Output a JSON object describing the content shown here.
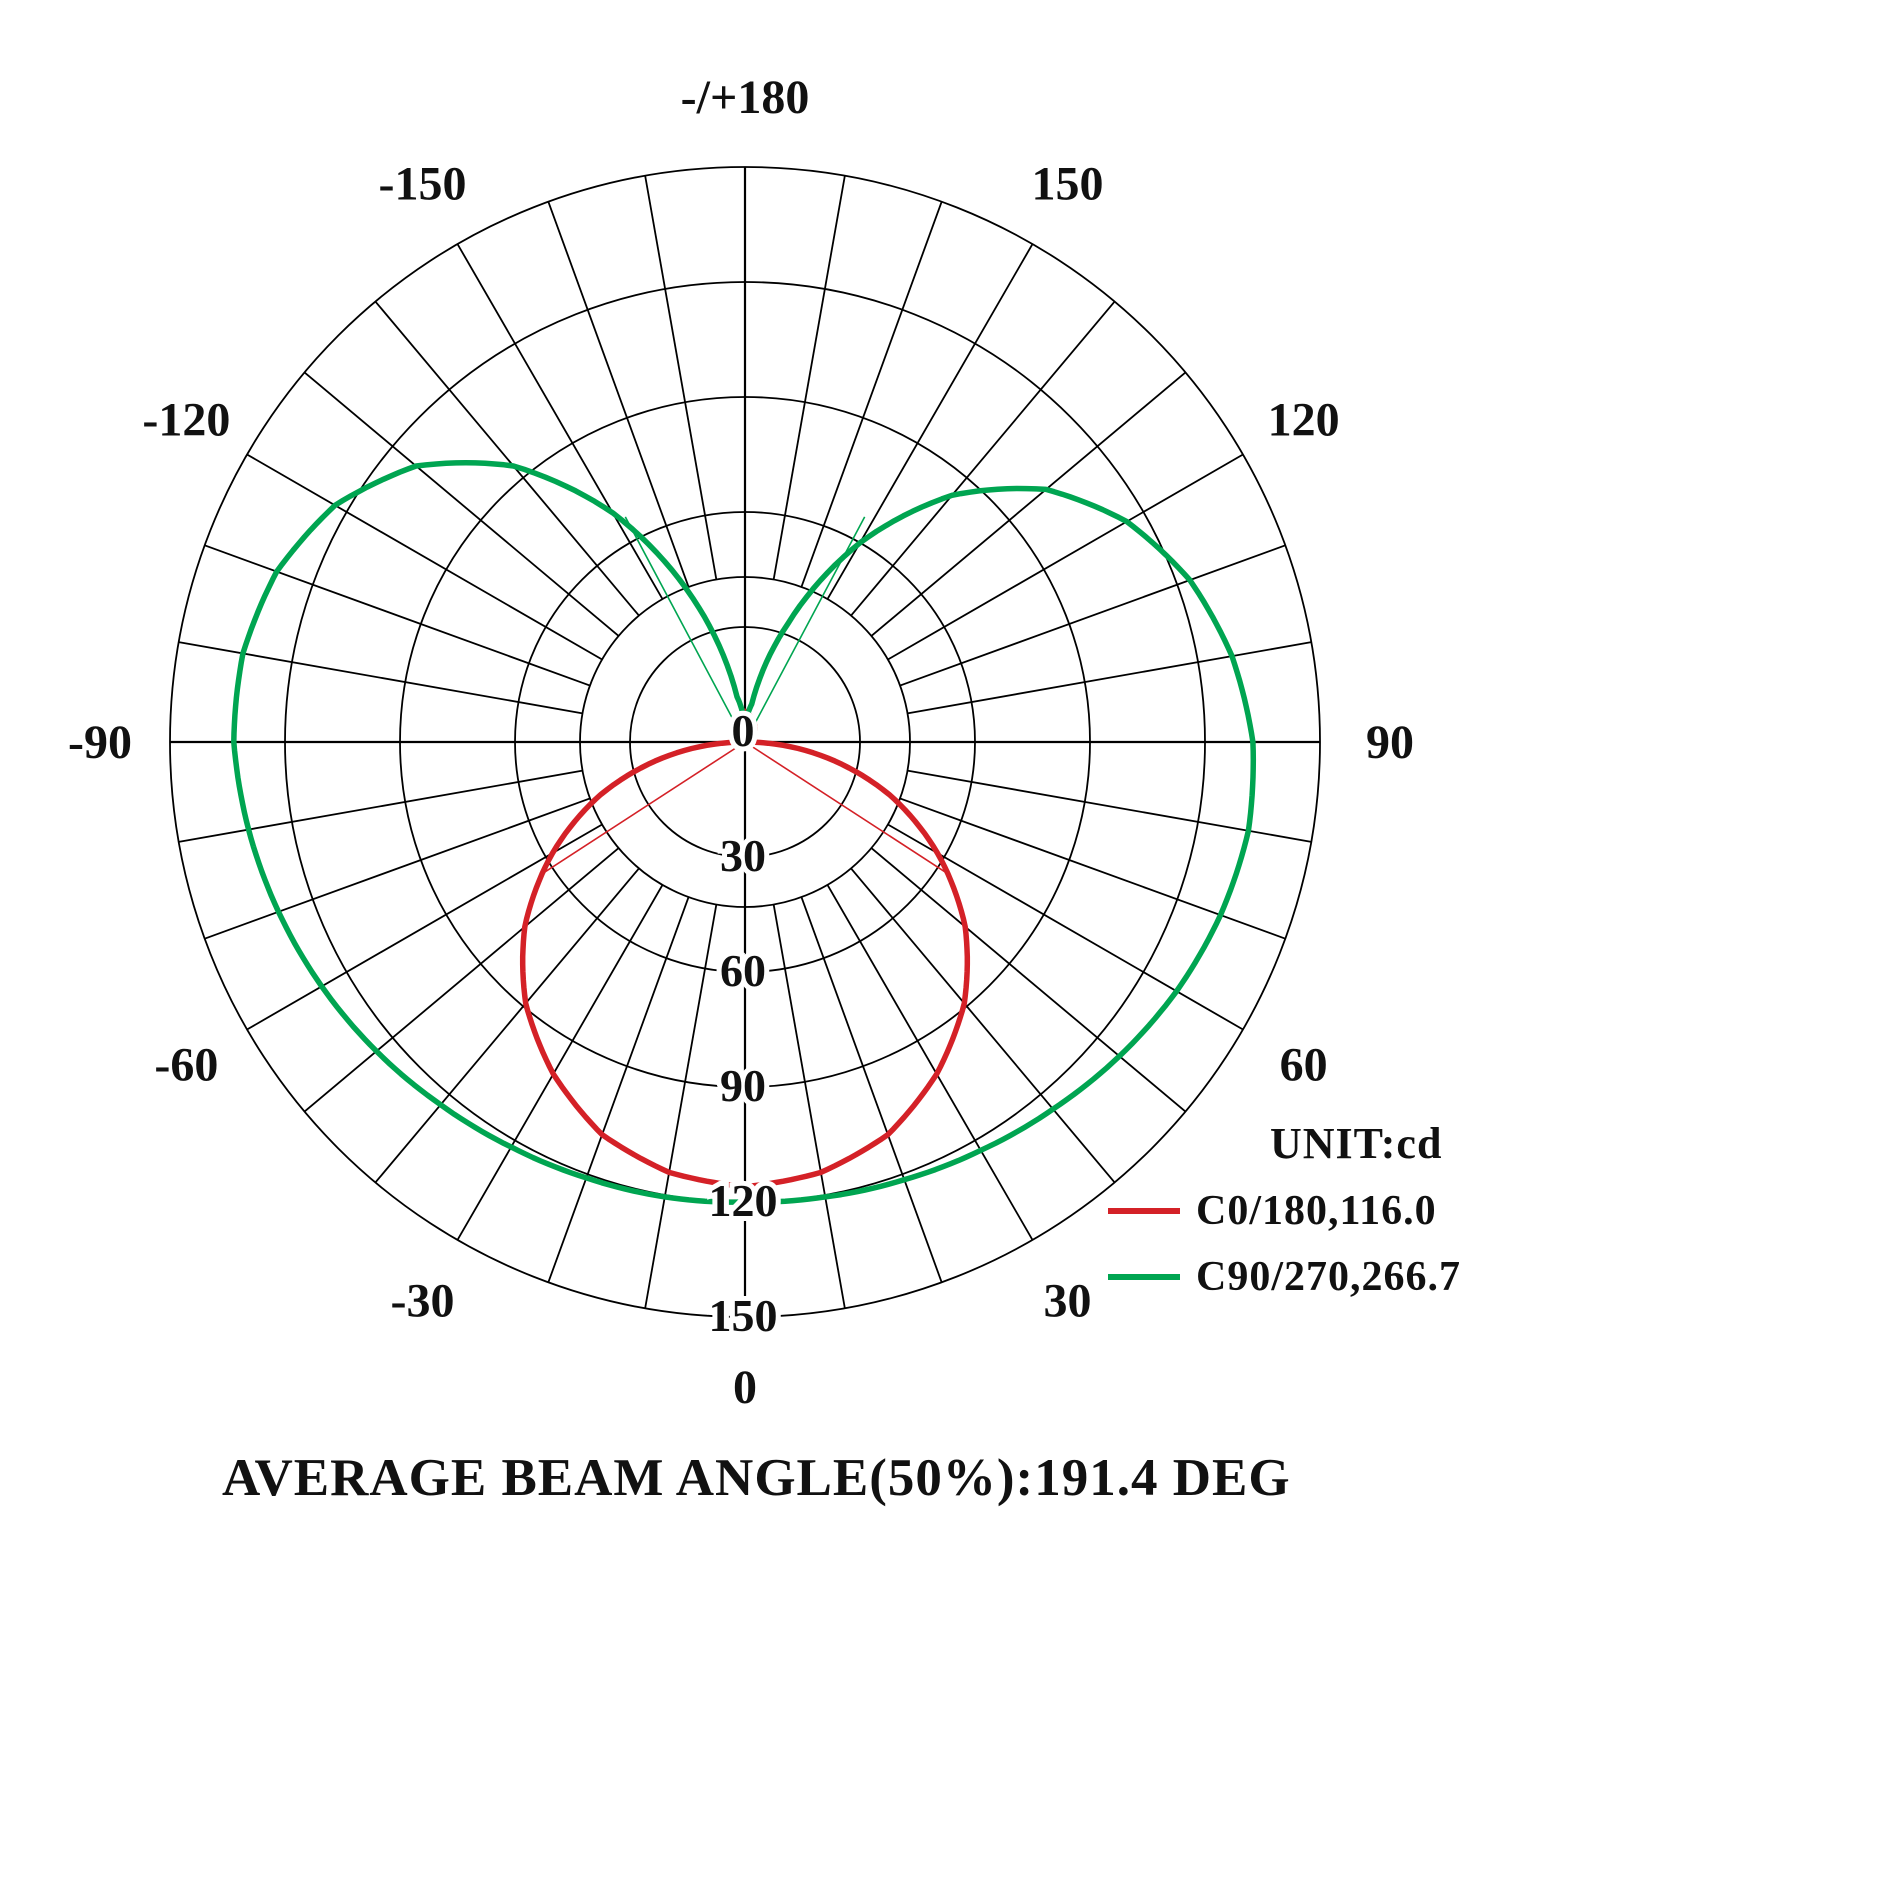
{
  "title_caption": "AVERAGE BEAM ANGLE(50%):191.4 DEG",
  "legend": {
    "unit_label": "UNIT:cd",
    "series": [
      {
        "label": "C0/180,116.0",
        "color": "#d42127"
      },
      {
        "label": "C90/270,266.7",
        "color": "#00a551"
      }
    ]
  },
  "chart_data": {
    "type": "polar-line",
    "title": "Luminous intensity distribution curve",
    "unit": "cd",
    "average_beam_angle_deg": 191.4,
    "radial_axis": {
      "min": 0,
      "max": 150,
      "ticks": [
        0,
        30,
        60,
        90,
        120,
        150
      ]
    },
    "angle_labels": [
      {
        "angle": 0,
        "label": "0"
      },
      {
        "angle": 30,
        "label": "30"
      },
      {
        "angle": 60,
        "label": "60"
      },
      {
        "angle": 90,
        "label": "90"
      },
      {
        "angle": 120,
        "label": "120"
      },
      {
        "angle": 150,
        "label": "150"
      },
      {
        "angle": 180,
        "label": "-/+180"
      },
      {
        "angle": -150,
        "label": "-150"
      },
      {
        "angle": -120,
        "label": "-120"
      },
      {
        "angle": -90,
        "label": "-90"
      },
      {
        "angle": -60,
        "label": "-60"
      },
      {
        "angle": -30,
        "label": "-30"
      }
    ],
    "series": [
      {
        "name": "C0/180",
        "peak_cd": 116.0,
        "color": "#d42127",
        "display_scale": 1,
        "angles": [
          -180,
          -170,
          -160,
          -150,
          -140,
          -130,
          -120,
          -110,
          -100,
          -90,
          -80,
          -70,
          -60,
          -50,
          -40,
          -30,
          -20,
          -10,
          0,
          10,
          20,
          30,
          40,
          50,
          60,
          70,
          80,
          90,
          100,
          110,
          120,
          130,
          140,
          150,
          160,
          170,
          180
        ],
        "values": [
          8,
          7,
          6,
          5,
          4,
          3,
          2,
          1,
          0.5,
          0,
          20,
          40,
          58,
          75,
          89,
          100,
          109,
          114,
          116,
          114,
          109,
          100,
          89,
          75,
          58,
          40,
          20,
          0,
          0.5,
          1,
          2,
          3,
          4,
          5,
          6,
          7,
          8
        ],
        "half_peak_lines": [
          {
            "angle": -57,
            "value": 63
          },
          {
            "angle": 57,
            "value": 63
          }
        ]
      },
      {
        "name": "C90/270",
        "peak_cd": 266.7,
        "color": "#00a551",
        "display_scale": 0.5,
        "angles": [
          -180,
          -170,
          -160,
          -150,
          -140,
          -130,
          -120,
          -110,
          -100,
          -90,
          -80,
          -70,
          -60,
          -50,
          -40,
          -30,
          -20,
          -10,
          0,
          10,
          20,
          30,
          40,
          50,
          60,
          70,
          80,
          90,
          100,
          110,
          120,
          130,
          140,
          150,
          160,
          170,
          180
        ],
        "values": [
          8,
          24,
          80,
          138,
          188,
          224,
          247,
          260,
          266,
          266.7,
          263,
          259,
          255,
          251,
          247,
          244,
          242,
          241,
          240,
          241,
          243,
          246,
          250,
          255,
          260,
          264,
          266.7,
          265,
          258,
          247,
          230,
          205,
          168,
          120,
          66,
          20,
          8
        ],
        "half_peak_lines": [
          {
            "angle": -152,
            "value": 133
          },
          {
            "angle": 152,
            "value": 133
          }
        ]
      }
    ]
  }
}
